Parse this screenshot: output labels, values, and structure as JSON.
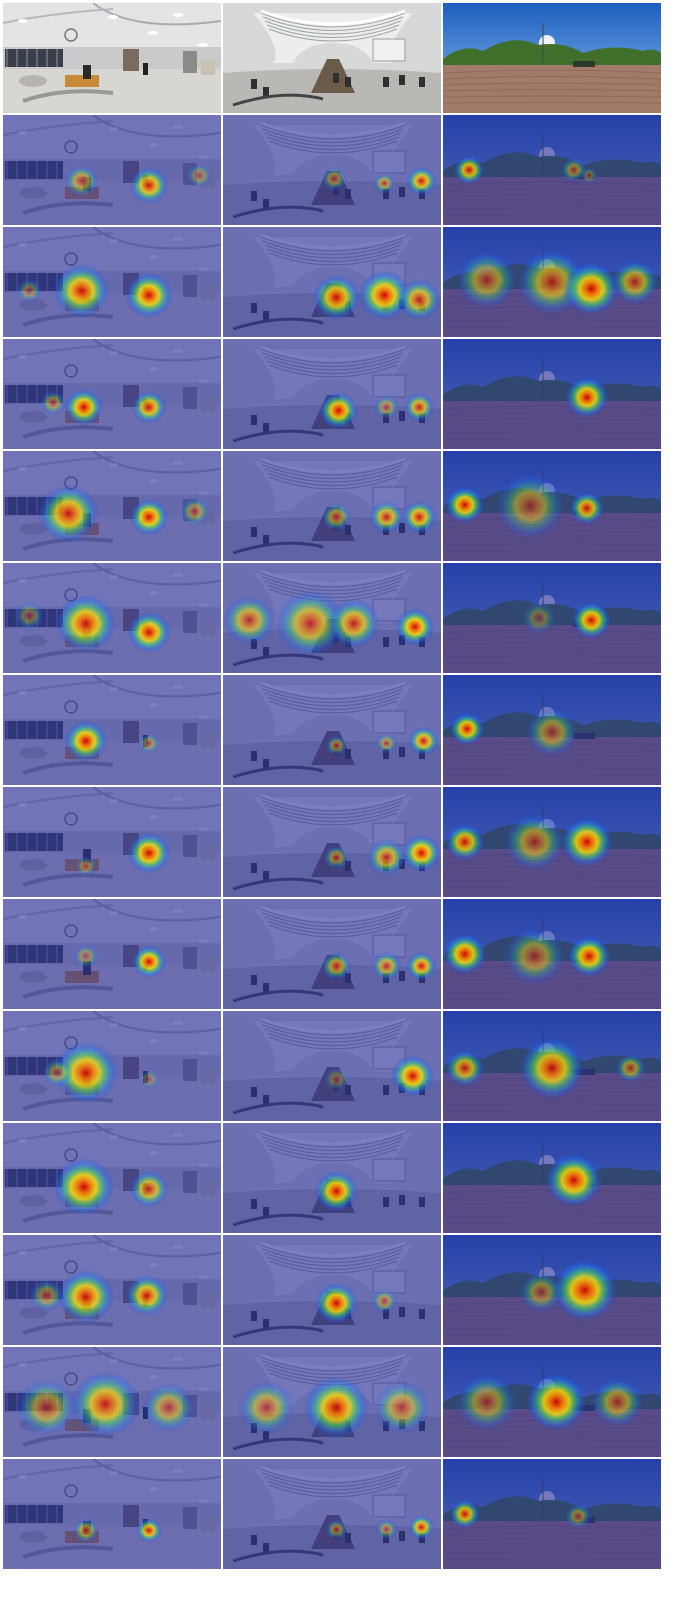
{
  "grid": {
    "rows": 14,
    "cols": 3,
    "background": "#ffffff"
  },
  "scenes": [
    {
      "id": "indoor-lobby",
      "palette": {
        "wall": "#c9cacc",
        "floor": "#d8d6d2",
        "ceiling": "#e4e4e6",
        "dark": "#3a3f4a"
      }
    },
    {
      "id": "indoor-hall",
      "palette": {
        "wall": "#d7d8d8",
        "floor": "#b9b8b5",
        "ceiling": "#eceded",
        "dark": "#4a4a4a"
      }
    },
    {
      "id": "outdoor-park",
      "palette": {
        "sky": "#1d5fbf",
        "skyLight": "#8ec0ef",
        "trees": "#3f6f2a",
        "ground": "#a27a69",
        "dark": "#2b3a2a"
      }
    }
  ],
  "overlay_tint": "#2a2f9a",
  "rows": [
    {
      "kind": "original",
      "blobs": [
        [],
        [],
        []
      ]
    },
    {
      "kind": "saliency",
      "blobs": [
        [
          [
            0.36,
            0.6,
            0.08,
            0.6
          ],
          [
            0.67,
            0.64,
            0.09,
            0.9
          ],
          [
            0.9,
            0.55,
            0.06,
            0.4
          ]
        ],
        [
          [
            0.51,
            0.58,
            0.06,
            0.5
          ],
          [
            0.74,
            0.62,
            0.05,
            0.6
          ],
          [
            0.91,
            0.6,
            0.07,
            0.9
          ]
        ],
        [
          [
            0.12,
            0.5,
            0.07,
            0.9
          ],
          [
            0.6,
            0.5,
            0.06,
            0.5
          ],
          [
            0.67,
            0.55,
            0.04,
            0.4
          ]
        ]
      ]
    },
    {
      "kind": "saliency",
      "blobs": [
        [
          [
            0.36,
            0.58,
            0.13,
            0.95
          ],
          [
            0.67,
            0.62,
            0.11,
            1.0
          ],
          [
            0.12,
            0.58,
            0.06,
            0.4
          ]
        ],
        [
          [
            0.52,
            0.64,
            0.11,
            0.95
          ],
          [
            0.74,
            0.62,
            0.12,
            1.0
          ],
          [
            0.9,
            0.66,
            0.1,
            0.8
          ]
        ],
        [
          [
            0.2,
            0.48,
            0.14,
            0.6
          ],
          [
            0.5,
            0.5,
            0.16,
            0.7
          ],
          [
            0.68,
            0.56,
            0.13,
            1.0
          ],
          [
            0.88,
            0.5,
            0.11,
            0.7
          ]
        ]
      ]
    },
    {
      "kind": "saliency",
      "blobs": [
        [
          [
            0.37,
            0.62,
            0.09,
            1.0
          ],
          [
            0.23,
            0.58,
            0.06,
            0.5
          ],
          [
            0.67,
            0.62,
            0.08,
            0.9
          ]
        ],
        [
          [
            0.53,
            0.65,
            0.09,
            1.0
          ],
          [
            0.75,
            0.62,
            0.06,
            0.5
          ],
          [
            0.9,
            0.62,
            0.07,
            0.8
          ]
        ],
        [
          [
            0.66,
            0.53,
            0.1,
            1.0
          ]
        ]
      ]
    },
    {
      "kind": "saliency",
      "blobs": [
        [
          [
            0.3,
            0.57,
            0.14,
            0.9
          ],
          [
            0.67,
            0.6,
            0.09,
            1.0
          ],
          [
            0.88,
            0.55,
            0.07,
            0.5
          ]
        ],
        [
          [
            0.52,
            0.6,
            0.07,
            0.6
          ],
          [
            0.75,
            0.6,
            0.08,
            0.8
          ],
          [
            0.9,
            0.6,
            0.08,
            0.9
          ]
        ],
        [
          [
            0.1,
            0.49,
            0.09,
            1.0
          ],
          [
            0.4,
            0.5,
            0.16,
            0.55
          ],
          [
            0.66,
            0.52,
            0.08,
            0.9
          ]
        ]
      ]
    },
    {
      "kind": "saliency",
      "blobs": [
        [
          [
            0.38,
            0.55,
            0.14,
            0.95
          ],
          [
            0.67,
            0.63,
            0.1,
            1.0
          ],
          [
            0.12,
            0.48,
            0.07,
            0.4
          ]
        ],
        [
          [
            0.12,
            0.52,
            0.12,
            0.7
          ],
          [
            0.4,
            0.55,
            0.16,
            0.75
          ],
          [
            0.6,
            0.55,
            0.12,
            0.8
          ],
          [
            0.88,
            0.58,
            0.09,
            1.0
          ]
        ],
        [
          [
            0.68,
            0.52,
            0.09,
            1.0
          ],
          [
            0.44,
            0.5,
            0.08,
            0.35
          ]
        ]
      ]
    },
    {
      "kind": "saliency",
      "blobs": [
        [
          [
            0.38,
            0.6,
            0.1,
            1.0
          ],
          [
            0.67,
            0.62,
            0.05,
            0.45
          ]
        ],
        [
          [
            0.52,
            0.64,
            0.05,
            0.5
          ],
          [
            0.75,
            0.62,
            0.05,
            0.5
          ],
          [
            0.92,
            0.6,
            0.07,
            0.9
          ]
        ],
        [
          [
            0.11,
            0.49,
            0.08,
            1.0
          ],
          [
            0.5,
            0.52,
            0.12,
            0.55
          ]
        ]
      ]
    },
    {
      "kind": "saliency",
      "blobs": [
        [
          [
            0.67,
            0.6,
            0.1,
            1.0
          ],
          [
            0.38,
            0.72,
            0.05,
            0.4
          ]
        ],
        [
          [
            0.52,
            0.64,
            0.06,
            0.55
          ],
          [
            0.75,
            0.64,
            0.09,
            0.75
          ],
          [
            0.91,
            0.6,
            0.09,
            1.0
          ]
        ],
        [
          [
            0.1,
            0.5,
            0.09,
            0.9
          ],
          [
            0.42,
            0.5,
            0.14,
            0.6
          ],
          [
            0.66,
            0.5,
            0.12,
            1.0
          ]
        ]
      ]
    },
    {
      "kind": "saliency",
      "blobs": [
        [
          [
            0.67,
            0.57,
            0.08,
            1.0
          ],
          [
            0.38,
            0.52,
            0.06,
            0.4
          ]
        ],
        [
          [
            0.52,
            0.61,
            0.07,
            0.7
          ],
          [
            0.75,
            0.61,
            0.07,
            0.7
          ],
          [
            0.91,
            0.61,
            0.07,
            0.9
          ]
        ],
        [
          [
            0.1,
            0.5,
            0.1,
            1.0
          ],
          [
            0.42,
            0.52,
            0.14,
            0.55
          ],
          [
            0.67,
            0.52,
            0.1,
            1.0
          ]
        ]
      ]
    },
    {
      "kind": "saliency",
      "blobs": [
        [
          [
            0.38,
            0.56,
            0.15,
            0.95
          ],
          [
            0.25,
            0.56,
            0.07,
            0.5
          ],
          [
            0.67,
            0.62,
            0.05,
            0.3
          ]
        ],
        [
          [
            0.87,
            0.59,
            0.1,
            1.0
          ],
          [
            0.52,
            0.62,
            0.06,
            0.35
          ]
        ],
        [
          [
            0.1,
            0.52,
            0.09,
            0.8
          ],
          [
            0.5,
            0.52,
            0.15,
            0.9
          ],
          [
            0.86,
            0.52,
            0.07,
            0.6
          ]
        ]
      ]
    },
    {
      "kind": "saliency",
      "blobs": [
        [
          [
            0.37,
            0.58,
            0.14,
            1.0
          ],
          [
            0.67,
            0.6,
            0.09,
            0.8
          ]
        ],
        [
          [
            0.52,
            0.62,
            0.1,
            1.0
          ]
        ],
        [
          [
            0.6,
            0.52,
            0.13,
            1.0
          ]
        ]
      ]
    },
    {
      "kind": "saliency",
      "blobs": [
        [
          [
            0.38,
            0.56,
            0.13,
            0.95
          ],
          [
            0.66,
            0.55,
            0.1,
            0.9
          ],
          [
            0.2,
            0.55,
            0.08,
            0.5
          ]
        ],
        [
          [
            0.52,
            0.62,
            0.1,
            1.0
          ],
          [
            0.74,
            0.6,
            0.06,
            0.5
          ]
        ],
        [
          [
            0.65,
            0.5,
            0.15,
            1.0
          ],
          [
            0.45,
            0.52,
            0.1,
            0.5
          ]
        ]
      ]
    },
    {
      "kind": "saliency",
      "blobs": [
        [
          [
            0.2,
            0.55,
            0.14,
            0.6
          ],
          [
            0.47,
            0.52,
            0.16,
            0.85
          ],
          [
            0.76,
            0.55,
            0.12,
            0.6
          ]
        ],
        [
          [
            0.2,
            0.55,
            0.13,
            0.6
          ],
          [
            0.52,
            0.55,
            0.15,
            0.95
          ],
          [
            0.82,
            0.55,
            0.13,
            0.6
          ]
        ],
        [
          [
            0.2,
            0.5,
            0.14,
            0.55
          ],
          [
            0.52,
            0.5,
            0.14,
            1.0
          ],
          [
            0.8,
            0.5,
            0.12,
            0.6
          ]
        ]
      ]
    },
    {
      "kind": "saliency",
      "blobs": [
        [
          [
            0.38,
            0.65,
            0.06,
            0.6
          ],
          [
            0.67,
            0.65,
            0.06,
            0.9
          ]
        ],
        [
          [
            0.52,
            0.64,
            0.05,
            0.5
          ],
          [
            0.75,
            0.64,
            0.05,
            0.5
          ],
          [
            0.91,
            0.62,
            0.06,
            0.9
          ]
        ],
        [
          [
            0.1,
            0.5,
            0.07,
            0.9
          ],
          [
            0.62,
            0.52,
            0.06,
            0.5
          ]
        ]
      ]
    }
  ]
}
